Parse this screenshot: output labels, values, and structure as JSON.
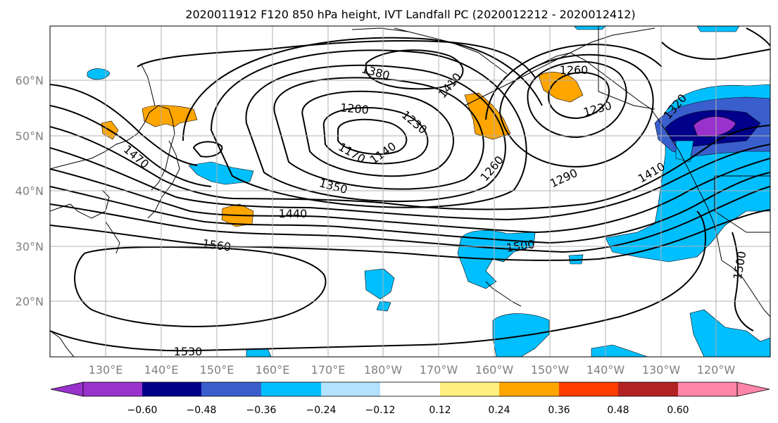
{
  "title": "2020011912 F120 850 hPa height, IVT Landfall PC (2020012212 - 2020012412)",
  "lat_labels": [
    "60°N",
    "50°N",
    "40°N",
    "30°N",
    "20°N"
  ],
  "lon_labels": [
    "130°E",
    "140°E",
    "150°E",
    "160°E",
    "170°E",
    "180°W",
    "170°W",
    "160°W",
    "150°W",
    "140°W",
    "130°W",
    "120°W"
  ],
  "contour_labels": [
    "1380",
    "1410",
    "1260",
    "1200",
    "1230",
    "1230",
    "1170",
    "1140",
    "1470",
    "1350",
    "1440",
    "1260",
    "1290",
    "1320",
    "1410",
    "1560",
    "1500",
    "1500",
    "1530"
  ],
  "colorbar": {
    "colors": [
      "#9932CC",
      "#00008B",
      "#3A5FCD",
      "#00BFFF",
      "#B2E2FF",
      "#FFFFFF",
      "#FFF080",
      "#FFA500",
      "#FF3C00",
      "#B22222",
      "#FF85A8"
    ],
    "ticks": [
      "−0.60",
      "−0.48",
      "−0.36",
      "−0.24",
      "−0.12",
      "0.12",
      "0.24",
      "0.36",
      "0.48",
      "0.60"
    ]
  }
}
